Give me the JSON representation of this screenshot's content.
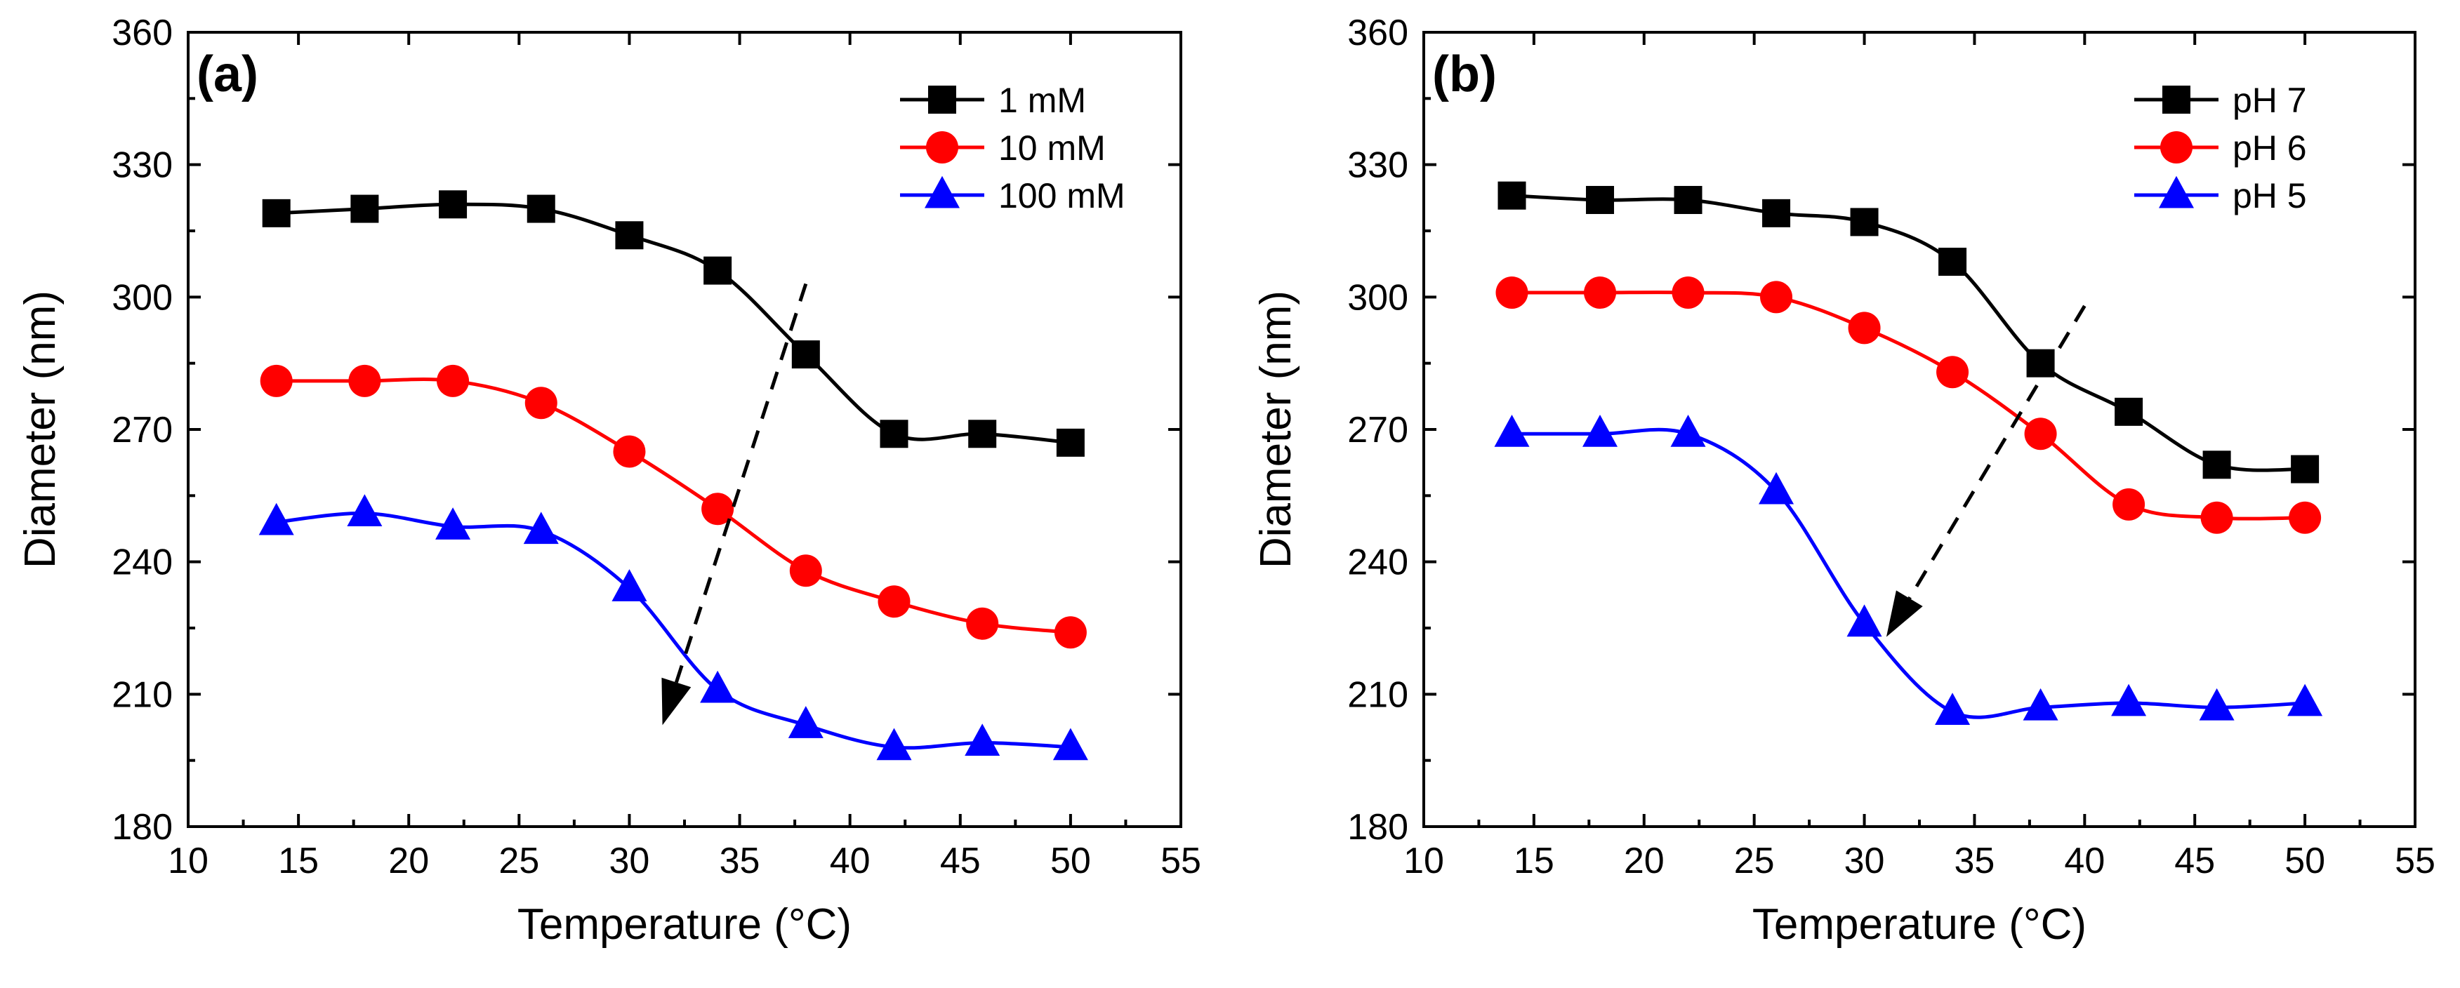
{
  "chart_data": [
    {
      "type": "line",
      "panel_label": "(a)",
      "title": "",
      "xlabel": "Temperature (°C)",
      "ylabel": "Diameter (nm)",
      "xlim": [
        10,
        55
      ],
      "ylim": [
        180,
        360
      ],
      "xticks": [
        10,
        15,
        20,
        25,
        30,
        35,
        40,
        45,
        50,
        55
      ],
      "yticks": [
        180,
        210,
        240,
        270,
        300,
        330,
        360
      ],
      "grid": false,
      "legend_position": "top-right",
      "x": [
        14,
        18,
        22,
        26,
        30,
        34,
        38,
        42,
        46,
        50
      ],
      "series": [
        {
          "name": "1 mM",
          "color": "#000000",
          "marker": "square",
          "values": [
            319,
            320,
            321,
            320,
            314,
            306,
            287,
            269,
            269,
            267
          ]
        },
        {
          "name": "10 mM",
          "color": "#ff0000",
          "marker": "circle",
          "values": [
            281,
            281,
            281,
            276,
            265,
            252,
            238,
            231,
            226,
            224
          ]
        },
        {
          "name": "100 mM",
          "color": "#0000ff",
          "marker": "triangle",
          "values": [
            249,
            251,
            248,
            247,
            234,
            211,
            203,
            198,
            199,
            198
          ]
        }
      ],
      "annotations": [
        {
          "type": "dashed-arrow",
          "from": [
            38,
            303
          ],
          "to": [
            31.5,
            203
          ]
        }
      ]
    },
    {
      "type": "line",
      "panel_label": "(b)",
      "title": "",
      "xlabel": "Temperature (°C)",
      "ylabel": "Diameter (nm)",
      "xlim": [
        10,
        55
      ],
      "ylim": [
        180,
        360
      ],
      "xticks": [
        10,
        15,
        20,
        25,
        30,
        35,
        40,
        45,
        50,
        55
      ],
      "yticks": [
        180,
        210,
        240,
        270,
        300,
        330,
        360
      ],
      "grid": false,
      "legend_position": "top-right",
      "x": [
        14,
        18,
        22,
        26,
        30,
        34,
        38,
        42,
        46,
        50
      ],
      "series": [
        {
          "name": "pH 7",
          "color": "#000000",
          "marker": "square",
          "values": [
            323,
            322,
            322,
            319,
            317,
            308,
            285,
            274,
            262,
            261
          ]
        },
        {
          "name": "pH 6",
          "color": "#ff0000",
          "marker": "circle",
          "values": [
            301,
            301,
            301,
            300,
            293,
            283,
            269,
            253,
            250,
            250
          ]
        },
        {
          "name": "pH 5",
          "color": "#0000ff",
          "marker": "triangle",
          "values": [
            269,
            269,
            269,
            256,
            226,
            206,
            207,
            208,
            207,
            208
          ]
        }
      ],
      "annotations": [
        {
          "type": "dashed-arrow",
          "from": [
            40,
            298
          ],
          "to": [
            31,
            223
          ]
        }
      ]
    }
  ]
}
